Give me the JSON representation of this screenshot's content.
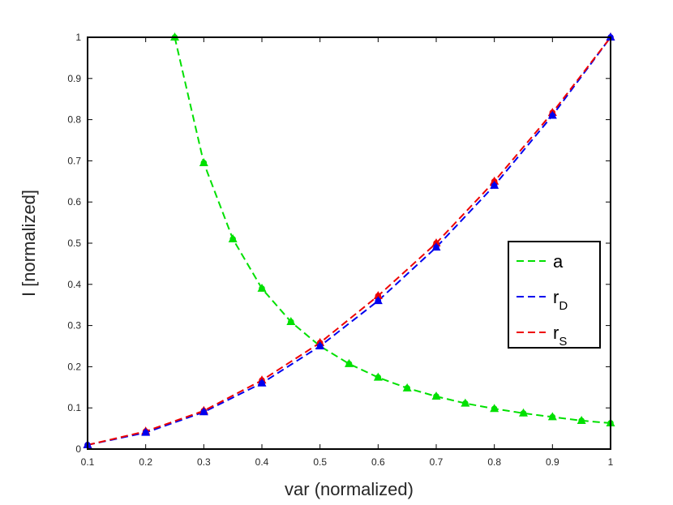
{
  "chart_data": {
    "type": "line",
    "title": "",
    "xlabel": "var (normalized)",
    "ylabel": "I [normalized]",
    "xlim": [
      0.1,
      1
    ],
    "ylim": [
      0,
      1
    ],
    "xticks": [
      0.1,
      0.2,
      0.3,
      0.4,
      0.5,
      0.6,
      0.7,
      0.8,
      0.9,
      1
    ],
    "xtick_labels": [
      "0.1",
      "0.2",
      "0.3",
      "0.4",
      "0.5",
      "0.6",
      "0.7",
      "0.8",
      "0.9",
      "1"
    ],
    "yticks": [
      0,
      0.1,
      0.2,
      0.3,
      0.4,
      0.5,
      0.6,
      0.7,
      0.8,
      0.9,
      1
    ],
    "ytick_labels": [
      "0",
      "0.1",
      "0.2",
      "0.3",
      "0.4",
      "0.5",
      "0.6",
      "0.7",
      "0.8",
      "0.9",
      "1"
    ],
    "grid": false,
    "legend_position": "right",
    "series": [
      {
        "name": "a",
        "legend_main": "a",
        "legend_sub": "",
        "color": "#00e000",
        "line_style": "dashed",
        "x": [
          0.25,
          0.3,
          0.35,
          0.4,
          0.45,
          0.5,
          0.55,
          0.6,
          0.65,
          0.7,
          0.75,
          0.8,
          0.85,
          0.9,
          0.95,
          1.0
        ],
        "y": [
          1.0,
          0.695,
          0.51,
          0.39,
          0.309,
          0.25,
          0.207,
          0.174,
          0.148,
          0.128,
          0.111,
          0.098,
          0.087,
          0.078,
          0.069,
          0.063
        ]
      },
      {
        "name": "r_D",
        "legend_main": "r",
        "legend_sub": "D",
        "color": "#0000ee",
        "line_style": "dashed",
        "x": [
          0.1,
          0.2,
          0.3,
          0.4,
          0.5,
          0.6,
          0.7,
          0.8,
          0.9,
          1.0
        ],
        "y": [
          0.01,
          0.04,
          0.09,
          0.16,
          0.25,
          0.36,
          0.49,
          0.64,
          0.81,
          1.0
        ]
      },
      {
        "name": "r_S",
        "legend_main": "r",
        "legend_sub": "S",
        "color": "#ee0000",
        "line_style": "dashed",
        "x": [
          0.1,
          0.2,
          0.3,
          0.4,
          0.5,
          0.6,
          0.7,
          0.8,
          0.9,
          1.0
        ],
        "y": [
          0.01,
          0.043,
          0.093,
          0.167,
          0.258,
          0.372,
          0.5,
          0.65,
          0.817,
          1.0
        ]
      }
    ]
  }
}
